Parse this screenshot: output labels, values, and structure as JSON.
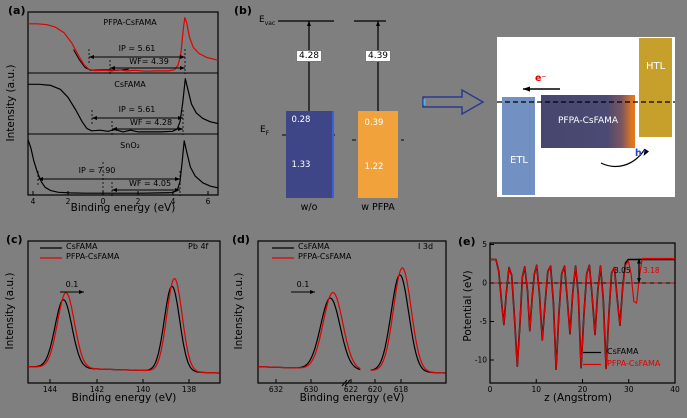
{
  "figure": {
    "background": "#7f7f7f",
    "panel_labels": {
      "a": "(a)",
      "b": "(b)",
      "c": "(c)",
      "d": "(d)",
      "e": "(e)"
    }
  },
  "chart_data": [
    {
      "id": "a",
      "type": "line",
      "xlabel": "Binding energy (eV)",
      "ylabel": "Intensity (a.u.)",
      "xticks": [
        "4",
        "2",
        "0",
        "2",
        "4",
        "6"
      ],
      "subplots": [
        {
          "label": "PFPA-CsFAMA",
          "ip_text": "IP = 5.61",
          "wf_text": "WF= 4.39",
          "ip": 5.61,
          "wf": 4.39,
          "color": "#e10000",
          "points": [
            [
              0,
              0.86
            ],
            [
              0.05,
              0.86
            ],
            [
              0.1,
              0.845
            ],
            [
              0.145,
              0.8
            ],
            [
              0.19,
              0.7
            ],
            [
              0.23,
              0.52
            ],
            [
              0.265,
              0.3
            ],
            [
              0.295,
              0.13
            ],
            [
              0.32,
              0.05
            ],
            [
              0.35,
              0.025
            ],
            [
              0.4,
              0.03
            ],
            [
              0.44,
              0.02
            ],
            [
              0.48,
              0.04
            ],
            [
              0.52,
              0.02
            ],
            [
              0.56,
              0.03
            ],
            [
              0.62,
              0.015
            ],
            [
              0.68,
              0.02
            ],
            [
              0.74,
              0.02
            ],
            [
              0.77,
              0.04
            ],
            [
              0.79,
              0.12
            ],
            [
              0.805,
              0.35
            ],
            [
              0.818,
              0.78
            ],
            [
              0.825,
              0.97
            ],
            [
              0.835,
              0.88
            ],
            [
              0.85,
              0.62
            ],
            [
              0.87,
              0.44
            ],
            [
              0.9,
              0.33
            ],
            [
              0.94,
              0.26
            ],
            [
              1,
              0.21
            ]
          ]
        },
        {
          "label": "CsFAMA",
          "ip_text": "IP = 5.61",
          "wf_text": "WF = 4.28",
          "ip": 5.61,
          "wf": 4.28,
          "color": "#000000",
          "points": [
            [
              0,
              0.87
            ],
            [
              0.06,
              0.87
            ],
            [
              0.12,
              0.85
            ],
            [
              0.17,
              0.78
            ],
            [
              0.21,
              0.64
            ],
            [
              0.25,
              0.42
            ],
            [
              0.285,
              0.2
            ],
            [
              0.31,
              0.08
            ],
            [
              0.335,
              0.04
            ],
            [
              0.38,
              0.05
            ],
            [
              0.42,
              0.03
            ],
            [
              0.46,
              0.06
            ],
            [
              0.5,
              0.02
            ],
            [
              0.54,
              0.05
            ],
            [
              0.58,
              0.02
            ],
            [
              0.64,
              0.02
            ],
            [
              0.7,
              0.02
            ],
            [
              0.76,
              0.03
            ],
            [
              0.785,
              0.07
            ],
            [
              0.8,
              0.2
            ],
            [
              0.815,
              0.55
            ],
            [
              0.828,
              0.97
            ],
            [
              0.84,
              0.8
            ],
            [
              0.86,
              0.52
            ],
            [
              0.885,
              0.36
            ],
            [
              0.92,
              0.26
            ],
            [
              0.96,
              0.2
            ],
            [
              1,
              0.17
            ]
          ]
        },
        {
          "label": "SnO₂",
          "ip_text": "IP = 7.90",
          "wf_text": "WF = 4.05",
          "ip": 7.9,
          "wf": 4.05,
          "color": "#000000",
          "points": [
            [
              0,
              0.97
            ],
            [
              0.015,
              0.82
            ],
            [
              0.03,
              0.6
            ],
            [
              0.05,
              0.38
            ],
            [
              0.07,
              0.22
            ],
            [
              0.09,
              0.12
            ],
            [
              0.12,
              0.06
            ],
            [
              0.16,
              0.03
            ],
            [
              0.22,
              0.02
            ],
            [
              0.3,
              0.015
            ],
            [
              0.4,
              0.015
            ],
            [
              0.5,
              0.015
            ],
            [
              0.6,
              0.015
            ],
            [
              0.7,
              0.02
            ],
            [
              0.76,
              0.025
            ],
            [
              0.785,
              0.06
            ],
            [
              0.8,
              0.22
            ],
            [
              0.812,
              0.6
            ],
            [
              0.822,
              0.95
            ],
            [
              0.835,
              0.75
            ],
            [
              0.855,
              0.48
            ],
            [
              0.88,
              0.32
            ],
            [
              0.92,
              0.2
            ],
            [
              0.96,
              0.14
            ],
            [
              1,
              0.11
            ]
          ]
        }
      ]
    },
    {
      "id": "b-energy-levels",
      "type": "diagram",
      "evac": {
        "main": "E",
        "sub": "vac"
      },
      "ef": {
        "main": "E",
        "sub": "F"
      },
      "bars": [
        {
          "label": "w/o",
          "wf_value": "4.28",
          "cbm_value": "0.28",
          "vbm_value": "1.33",
          "color": "#3e4687",
          "edge": "#3b5fd8"
        },
        {
          "label": "w PFPA",
          "wf_value": "4.39",
          "cbm_value": "0.39",
          "vbm_value": "1.22",
          "color": "#f2a23b"
        }
      ]
    },
    {
      "id": "b-band-schematic",
      "type": "diagram",
      "etl_label": "ETL",
      "htl_label": "HTL",
      "absorber_label": "PFPA-CsFAMA",
      "electron_label": "e⁻",
      "hole_label": "h⁺",
      "colors": {
        "etl": "#7291c2",
        "htl": "#c6a02b",
        "absorber_left": "#46466e",
        "absorber_right": "#e2761e"
      }
    },
    {
      "id": "c",
      "type": "line",
      "title_corner": "Pb 4f",
      "shift_label": "0.1",
      "xlabel": "Binding energy (eV)",
      "ylabel": "Intensity (a.u.)",
      "xticks": [
        "144",
        "142",
        "140",
        "138"
      ],
      "series": [
        {
          "name": "CsFAMA",
          "color": "#000000",
          "peak_centers_eV": [
            143.0,
            138.3
          ],
          "peaks": [
            {
              "c": 0.185,
              "s": 0.044,
              "a": 0.48
            },
            {
              "c": 0.75,
              "s": 0.04,
              "a": 0.6
            }
          ]
        },
        {
          "name": "PFPA-CsFAMA",
          "color": "#e10000",
          "peak_centers_eV": [
            142.9,
            138.2
          ],
          "peaks": [
            {
              "c": 0.198,
              "s": 0.044,
              "a": 0.53
            },
            {
              "c": 0.763,
              "s": 0.04,
              "a": 0.655
            }
          ]
        }
      ]
    },
    {
      "id": "d",
      "type": "line",
      "title_corner": "I 3d",
      "shift_label": "0.1",
      "axis_break": true,
      "xlabel": "Binding energy (eV)",
      "ylabel": "Intensity (a.u.)",
      "xticks": [
        "632",
        "630",
        "622",
        "620",
        "618"
      ],
      "series": [
        {
          "name": "CsFAMA",
          "color": "#000000",
          "peak_centers_eV": [
            630.7,
            619.3
          ],
          "peaks": [
            {
              "c": 0.385,
              "s": 0.052,
              "a": 0.5
            },
            {
              "c": 0.755,
              "s": 0.047,
              "a": 0.68
            }
          ]
        },
        {
          "name": "PFPA-CsFAMA",
          "color": "#e10000",
          "peak_centers_eV": [
            630.6,
            619.2
          ],
          "peaks": [
            {
              "c": 0.399,
              "s": 0.052,
              "a": 0.54
            },
            {
              "c": 0.768,
              "s": 0.047,
              "a": 0.73
            }
          ]
        }
      ]
    },
    {
      "id": "e",
      "type": "line",
      "xlabel": "z (Angstrom)",
      "ylabel": "Potential (eV)",
      "xticks": [
        "0",
        "10",
        "20",
        "30",
        "40"
      ],
      "yticks": [
        "5",
        "0",
        "-5",
        "-10"
      ],
      "series": [
        {
          "name": "CsFAMA",
          "color": "#000000",
          "vacuum_label": "3.05",
          "points": [
            [
              0,
              3.05
            ],
            [
              1.3,
              3.05
            ],
            [
              1.9,
              1.5
            ],
            [
              2.5,
              -2.5
            ],
            [
              3,
              -5.4
            ],
            [
              3.5,
              -1.5
            ],
            [
              4.1,
              2.0
            ],
            [
              4.7,
              1.0
            ],
            [
              5.3,
              -4.5
            ],
            [
              5.9,
              -10.8
            ],
            [
              6.5,
              -5.0
            ],
            [
              7.0,
              0.8
            ],
            [
              7.5,
              2.1
            ],
            [
              8.1,
              -1.0
            ],
            [
              8.6,
              -6.2
            ],
            [
              9.1,
              -2.0
            ],
            [
              9.6,
              1.2
            ],
            [
              10.1,
              2.3
            ],
            [
              10.7,
              -1.5
            ],
            [
              11.3,
              -7.4
            ],
            [
              11.9,
              -2.8
            ],
            [
              12.5,
              1.5
            ],
            [
              13.1,
              2.2
            ],
            [
              13.7,
              -2.5
            ],
            [
              14.3,
              -11.2
            ],
            [
              14.9,
              -4.0
            ],
            [
              15.5,
              1.2
            ],
            [
              16.1,
              2.2
            ],
            [
              16.7,
              -2.0
            ],
            [
              17.3,
              -6.6
            ],
            [
              17.9,
              -1.2
            ],
            [
              18.5,
              2.2
            ],
            [
              19.1,
              -1.5
            ],
            [
              19.7,
              -11.0
            ],
            [
              20.3,
              -4.2
            ],
            [
              20.9,
              1.2
            ],
            [
              21.5,
              2.3
            ],
            [
              22.1,
              -1.8
            ],
            [
              22.7,
              -6.7
            ],
            [
              23.3,
              -1.0
            ],
            [
              23.9,
              2.2
            ],
            [
              24.5,
              -2.2
            ],
            [
              25.1,
              -11.1
            ],
            [
              25.7,
              -4.0
            ],
            [
              26.3,
              1.3
            ],
            [
              26.9,
              2.0
            ],
            [
              27.5,
              -2.0
            ],
            [
              28.1,
              -5.5
            ],
            [
              28.7,
              -0.5
            ],
            [
              29.3,
              2.6
            ],
            [
              29.9,
              3.05
            ],
            [
              40,
              3.05
            ]
          ]
        },
        {
          "name": "PFPA-CsFAMA",
          "color": "#e10000",
          "vacuum_label": "3.18",
          "points": [
            [
              0,
              3.05
            ],
            [
              1.3,
              3.05
            ],
            [
              1.9,
              1.5
            ],
            [
              2.5,
              -2.5
            ],
            [
              3,
              -5.4
            ],
            [
              3.5,
              -1.5
            ],
            [
              4.1,
              2.0
            ],
            [
              4.7,
              1.0
            ],
            [
              5.3,
              -4.5
            ],
            [
              5.9,
              -10.8
            ],
            [
              6.5,
              -5.0
            ],
            [
              7.0,
              0.8
            ],
            [
              7.5,
              2.1
            ],
            [
              8.1,
              -1.0
            ],
            [
              8.6,
              -6.2
            ],
            [
              9.1,
              -2.0
            ],
            [
              9.6,
              1.2
            ],
            [
              10.1,
              2.3
            ],
            [
              10.7,
              -1.5
            ],
            [
              11.3,
              -7.4
            ],
            [
              11.9,
              -2.8
            ],
            [
              12.5,
              1.5
            ],
            [
              13.1,
              2.2
            ],
            [
              13.7,
              -2.5
            ],
            [
              14.3,
              -11.2
            ],
            [
              14.9,
              -4.0
            ],
            [
              15.5,
              1.2
            ],
            [
              16.1,
              2.2
            ],
            [
              16.7,
              -2.0
            ],
            [
              17.3,
              -6.6
            ],
            [
              17.9,
              -1.2
            ],
            [
              18.5,
              2.2
            ],
            [
              19.1,
              -1.5
            ],
            [
              19.7,
              -11.0
            ],
            [
              20.3,
              -4.2
            ],
            [
              20.9,
              1.2
            ],
            [
              21.5,
              2.3
            ],
            [
              22.1,
              -1.8
            ],
            [
              22.7,
              -6.7
            ],
            [
              23.3,
              -1.0
            ],
            [
              23.9,
              2.2
            ],
            [
              24.5,
              -2.2
            ],
            [
              25.1,
              -11.1
            ],
            [
              25.7,
              -4.0
            ],
            [
              26.3,
              1.3
            ],
            [
              26.9,
              2.0
            ],
            [
              27.5,
              -2.0
            ],
            [
              28.1,
              -5.5
            ],
            [
              28.7,
              -0.5
            ],
            [
              29.3,
              2.3
            ],
            [
              29.9,
              2.9
            ],
            [
              30.5,
              1.2
            ],
            [
              31.1,
              -2.4
            ],
            [
              31.7,
              -2.6
            ],
            [
              32.3,
              0.8
            ],
            [
              32.9,
              3.18
            ],
            [
              40,
              3.18
            ]
          ]
        }
      ]
    }
  ]
}
